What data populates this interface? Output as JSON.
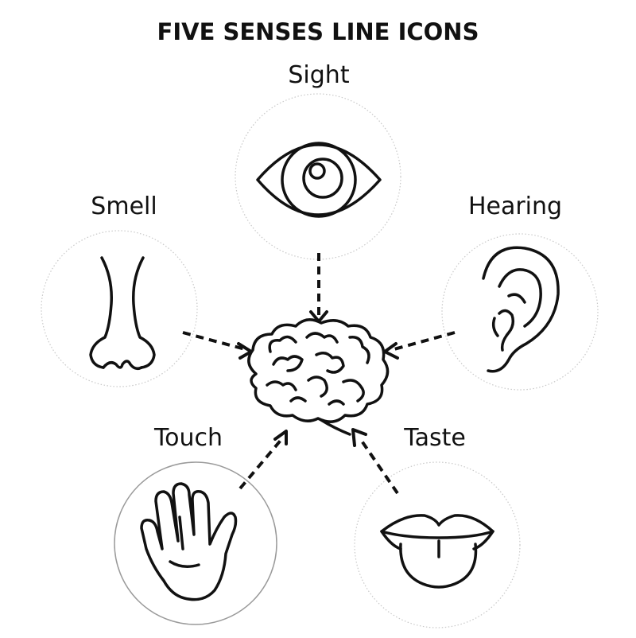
{
  "title": "FIVE SENSES LINE ICONS",
  "senses": {
    "sight": {
      "label": "Sight",
      "icon": "eye-icon"
    },
    "smell": {
      "label": "Smell",
      "icon": "nose-icon"
    },
    "hearing": {
      "label": "Hearing",
      "icon": "ear-icon"
    },
    "touch": {
      "label": "Touch",
      "icon": "hand-icon"
    },
    "taste": {
      "label": "Taste",
      "icon": "mouth-tongue-icon"
    }
  },
  "center": {
    "icon": "brain-icon"
  },
  "colors": {
    "ink": "#111111",
    "ring": "#c8c8c8",
    "background": "#ffffff"
  }
}
